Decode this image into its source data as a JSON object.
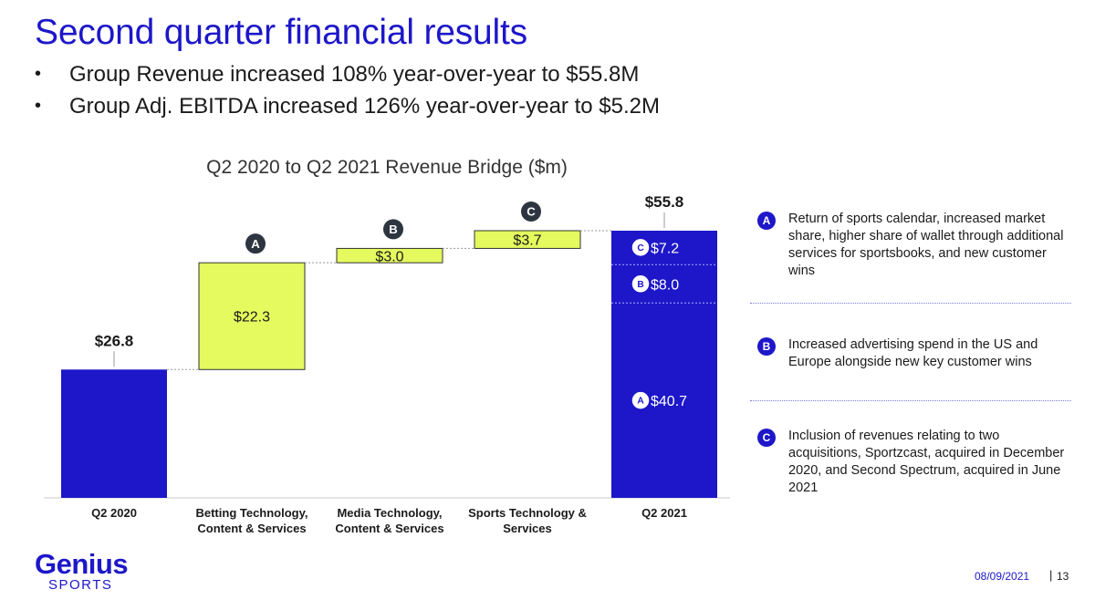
{
  "title": "Second quarter financial results",
  "bullets": [
    "Group Revenue increased 108% year-over-year to $55.8M",
    "Group Adj. EBITDA increased 126% year-over-year to $5.2M"
  ],
  "colors": {
    "brand_blue": "#1d17c9",
    "increment_green": "#e4fa5e"
  },
  "chart_data": {
    "type": "bar",
    "subtype": "waterfall",
    "title": "Q2 2020 to Q2 2021 Revenue Bridge ($m)",
    "categories": [
      "Q2 2020",
      "Betting Technology, Content & Services",
      "Media Technology, Content & Services",
      "Sports Technology & Services",
      "Q2 2021"
    ],
    "category_lines": [
      [
        "Q2 2020"
      ],
      [
        "Betting Technology,",
        "Content & Services"
      ],
      [
        "Media Technology,",
        "Content & Services"
      ],
      [
        "Sports Technology &",
        "Services"
      ],
      [
        "Q2 2021"
      ]
    ],
    "values": [
      26.8,
      22.3,
      3.0,
      3.7,
      55.8
    ],
    "measure": [
      "total",
      "increment",
      "increment",
      "increment",
      "total"
    ],
    "value_labels": [
      "$26.8",
      "$22.3",
      "$3.0",
      "$3.7",
      "$55.8"
    ],
    "bar_badges": [
      "",
      "A",
      "B",
      "C",
      ""
    ],
    "total_breakdown": [
      {
        "badge": "A",
        "value": 40.7,
        "label": "$40.7"
      },
      {
        "badge": "B",
        "value": 8.0,
        "label": "$8.0"
      },
      {
        "badge": "C",
        "value": 7.2,
        "label": "$7.2"
      }
    ],
    "ylim": [
      0,
      56
    ],
    "grid": false,
    "legend": "none"
  },
  "notes": [
    {
      "badge": "A",
      "text": "Return of sports calendar, increased market share, higher share of wallet through additional services for sportsbooks, and new customer wins"
    },
    {
      "badge": "B",
      "text": "Increased advertising spend in the US and Europe alongside new key customer wins"
    },
    {
      "badge": "C",
      "text": "Inclusion of revenues relating to two acquisitions, Sportzcast, acquired in December 2020, and Second Spectrum, acquired in June 2021"
    }
  ],
  "logo": {
    "word": "Genius",
    "sub": "SPORTS"
  },
  "footer": {
    "date": "08/09/2021",
    "separator": "|",
    "page": "13"
  }
}
